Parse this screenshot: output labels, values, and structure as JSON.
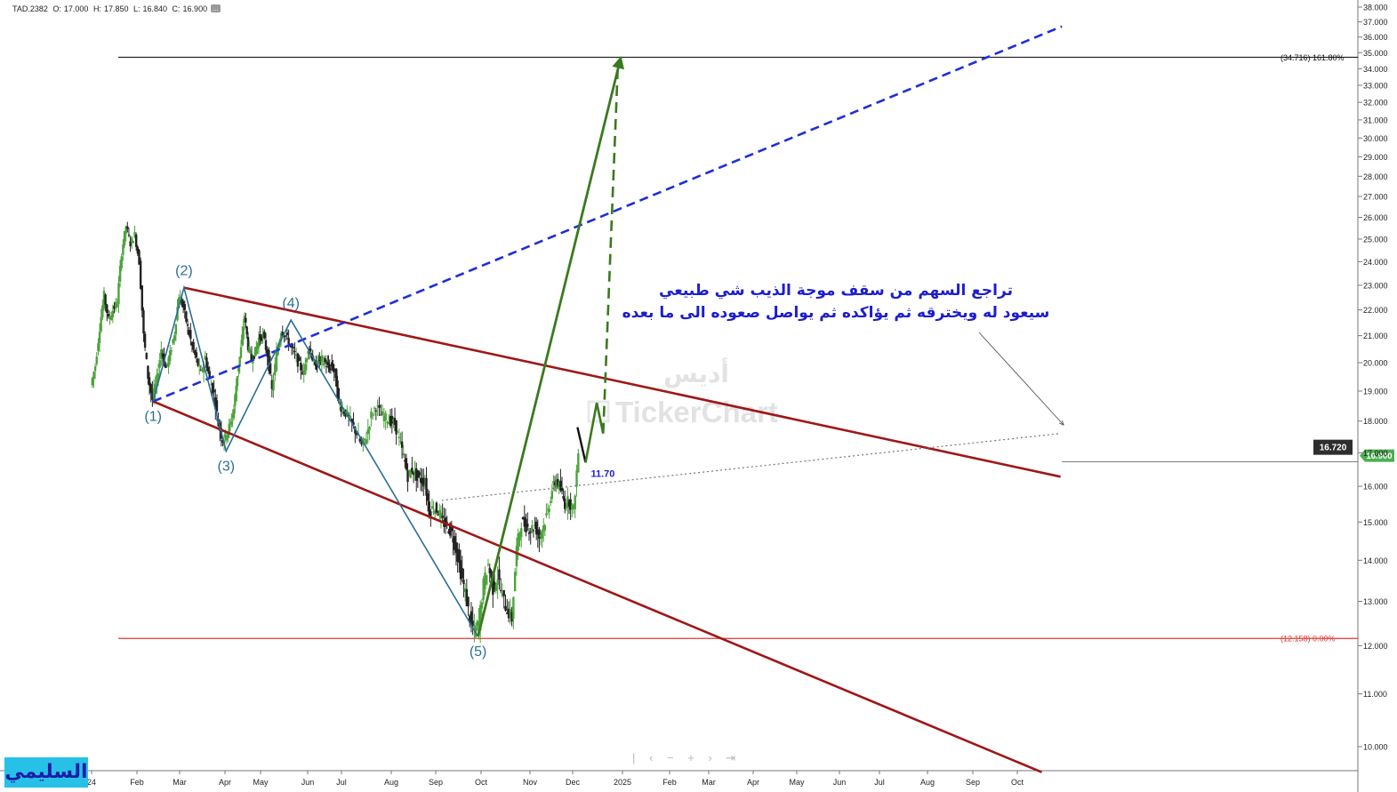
{
  "header": {
    "symbol": "TAD.2382",
    "open_label": "O:",
    "open": "17.000",
    "high_label": "H:",
    "high": "17.850",
    "low_label": "L:",
    "low": "16.840",
    "close_label": "C:",
    "close": "16.900",
    "more": "..."
  },
  "watermark": {
    "ar": "أديس",
    "en": "TickerChart"
  },
  "signature": "السليمي",
  "nav_icons": [
    "pipe-icon",
    "chevron-left-icon",
    "minus-icon",
    "plus-icon",
    "chevron-right-icon",
    "skip-end-icon"
  ],
  "nav_glyphs": [
    "|",
    "‹",
    "−",
    "+",
    "›",
    "⇥"
  ],
  "colors": {
    "up_candle": "#4ba33a",
    "down_candle": "#222222",
    "channel": "#a01616",
    "wave": "#2c6e96",
    "projection": "#1e2fd6",
    "target_arrow": "#3a7a1f",
    "fib_zero": "#e53935",
    "price_badge": "#4caf50",
    "annotation": "#1d1dcf"
  },
  "chart_data": {
    "type": "candlestick",
    "ylim": [
      9.6,
      38.0
    ],
    "log_scale": true,
    "grid": false,
    "y_ticks": [
      "38.000",
      "37.000",
      "36.000",
      "35.000",
      "34.000",
      "33.000",
      "32.000",
      "31.000",
      "30.000",
      "29.000",
      "28.000",
      "27.000",
      "26.000",
      "25.000",
      "24.000",
      "23.000",
      "22.000",
      "21.000",
      "20.000",
      "19.000",
      "18.000",
      "17.000",
      "16.000",
      "15.000",
      "14.000",
      "13.000",
      "12.000",
      "11.000",
      "10.000"
    ],
    "x_ticks": [
      "24",
      "Feb",
      "Mar",
      "Apr",
      "May",
      "Jun",
      "Jul",
      "Aug",
      "Sep",
      "Oct",
      "Nov",
      "Dec",
      "2025",
      "Feb",
      "Mar",
      "Apr",
      "May",
      "Jun",
      "Jul",
      "Aug",
      "Sep",
      "Oct"
    ],
    "price_path": [
      {
        "date": "2024-01-01",
        "price": 19.2
      },
      {
        "date": "2024-01-04",
        "price": 19.9
      },
      {
        "date": "2024-01-07",
        "price": 21.3
      },
      {
        "date": "2024-01-10",
        "price": 22.6
      },
      {
        "date": "2024-01-13",
        "price": 21.6
      },
      {
        "date": "2024-01-16",
        "price": 22.0
      },
      {
        "date": "2024-01-19",
        "price": 22.3
      },
      {
        "date": "2024-01-22",
        "price": 24.4
      },
      {
        "date": "2024-01-25",
        "price": 25.6
      },
      {
        "date": "2024-01-28",
        "price": 24.8
      },
      {
        "date": "2024-01-31",
        "price": 25.2
      },
      {
        "date": "2024-02-03",
        "price": 24.0
      },
      {
        "date": "2024-02-06",
        "price": 21.0
      },
      {
        "date": "2024-02-09",
        "price": 19.5
      },
      {
        "date": "2024-02-12",
        "price": 18.7
      },
      {
        "date": "2024-02-15",
        "price": 19.4
      },
      {
        "date": "2024-02-18",
        "price": 20.5
      },
      {
        "date": "2024-02-21",
        "price": 19.8
      },
      {
        "date": "2024-02-24",
        "price": 20.3
      },
      {
        "date": "2024-02-27",
        "price": 21.1
      },
      {
        "date": "2024-03-01",
        "price": 22.6
      },
      {
        "date": "2024-03-04",
        "price": 22.1
      },
      {
        "date": "2024-03-07",
        "price": 21.3
      },
      {
        "date": "2024-03-10",
        "price": 20.6
      },
      {
        "date": "2024-03-13",
        "price": 20.1
      },
      {
        "date": "2024-03-16",
        "price": 19.6
      },
      {
        "date": "2024-03-19",
        "price": 20.2
      },
      {
        "date": "2024-03-22",
        "price": 19.4
      },
      {
        "date": "2024-03-25",
        "price": 18.9
      },
      {
        "date": "2024-03-28",
        "price": 17.9
      },
      {
        "date": "2024-03-31",
        "price": 17.4
      },
      {
        "date": "2024-04-03",
        "price": 17.6
      },
      {
        "date": "2024-04-06",
        "price": 17.9
      },
      {
        "date": "2024-04-09",
        "price": 18.4
      },
      {
        "date": "2024-04-12",
        "price": 19.6
      },
      {
        "date": "2024-04-15",
        "price": 20.5
      },
      {
        "date": "2024-04-18",
        "price": 21.8
      },
      {
        "date": "2024-04-21",
        "price": 20.6
      },
      {
        "date": "2024-04-24",
        "price": 20.1
      },
      {
        "date": "2024-04-27",
        "price": 20.4
      },
      {
        "date": "2024-04-30",
        "price": 20.9
      },
      {
        "date": "2024-05-03",
        "price": 21.0
      },
      {
        "date": "2024-05-06",
        "price": 20.3
      },
      {
        "date": "2024-05-09",
        "price": 19.0
      },
      {
        "date": "2024-05-12",
        "price": 20.3
      },
      {
        "date": "2024-05-15",
        "price": 21.2
      },
      {
        "date": "2024-05-18",
        "price": 21.0
      },
      {
        "date": "2024-05-21",
        "price": 20.6
      },
      {
        "date": "2024-05-24",
        "price": 20.3
      },
      {
        "date": "2024-05-27",
        "price": 19.9
      },
      {
        "date": "2024-05-30",
        "price": 19.6
      },
      {
        "date": "2024-06-02",
        "price": 20.6
      },
      {
        "date": "2024-06-05",
        "price": 20.3
      },
      {
        "date": "2024-06-08",
        "price": 19.8
      },
      {
        "date": "2024-06-11",
        "price": 20.1
      },
      {
        "date": "2024-06-14",
        "price": 20.1
      },
      {
        "date": "2024-06-17",
        "price": 20.0
      },
      {
        "date": "2024-06-20",
        "price": 19.8
      },
      {
        "date": "2024-06-23",
        "price": 19.9
      },
      {
        "date": "2024-06-26",
        "price": 19.6
      },
      {
        "date": "2024-06-29",
        "price": 18.6
      },
      {
        "date": "2024-07-02",
        "price": 18.4
      },
      {
        "date": "2024-07-05",
        "price": 18.2
      },
      {
        "date": "2024-07-08",
        "price": 17.9
      },
      {
        "date": "2024-07-11",
        "price": 17.6
      },
      {
        "date": "2024-07-14",
        "price": 17.2
      },
      {
        "date": "2024-07-17",
        "price": 17.5
      },
      {
        "date": "2024-07-20",
        "price": 18.2
      },
      {
        "date": "2024-07-23",
        "price": 18.5
      },
      {
        "date": "2024-07-26",
        "price": 18.2
      },
      {
        "date": "2024-07-29",
        "price": 18.1
      },
      {
        "date": "2024-08-01",
        "price": 18.0
      },
      {
        "date": "2024-08-04",
        "price": 17.9
      },
      {
        "date": "2024-08-07",
        "price": 17.4
      },
      {
        "date": "2024-08-10",
        "price": 16.9
      },
      {
        "date": "2024-08-13",
        "price": 16.3
      },
      {
        "date": "2024-08-16",
        "price": 16.5
      },
      {
        "date": "2024-08-19",
        "price": 16.3
      },
      {
        "date": "2024-08-22",
        "price": 16.2
      },
      {
        "date": "2024-08-25",
        "price": 16.1
      },
      {
        "date": "2024-08-28",
        "price": 15.3
      },
      {
        "date": "2024-08-31",
        "price": 15.4
      },
      {
        "date": "2024-09-03",
        "price": 15.3
      },
      {
        "date": "2024-09-06",
        "price": 15.0
      },
      {
        "date": "2024-09-09",
        "price": 14.9
      },
      {
        "date": "2024-09-12",
        "price": 14.7
      },
      {
        "date": "2024-09-15",
        "price": 14.3
      },
      {
        "date": "2024-09-18",
        "price": 13.7
      },
      {
        "date": "2024-09-21",
        "price": 13.2
      },
      {
        "date": "2024-09-24",
        "price": 12.6
      },
      {
        "date": "2024-09-27",
        "price": 12.3
      },
      {
        "date": "2024-09-30",
        "price": 12.5
      },
      {
        "date": "2024-10-03",
        "price": 13.4
      },
      {
        "date": "2024-10-06",
        "price": 13.9
      },
      {
        "date": "2024-10-09",
        "price": 13.3
      },
      {
        "date": "2024-10-12",
        "price": 13.6
      },
      {
        "date": "2024-10-15",
        "price": 13.1
      },
      {
        "date": "2024-10-18",
        "price": 12.8
      },
      {
        "date": "2024-10-21",
        "price": 12.6
      },
      {
        "date": "2024-10-24",
        "price": 14.3
      },
      {
        "date": "2024-10-27",
        "price": 15.0
      },
      {
        "date": "2024-10-30",
        "price": 14.9
      },
      {
        "date": "2024-11-02",
        "price": 14.8
      },
      {
        "date": "2024-11-05",
        "price": 14.9
      },
      {
        "date": "2024-11-08",
        "price": 14.6
      },
      {
        "date": "2024-11-11",
        "price": 14.9
      },
      {
        "date": "2024-11-14",
        "price": 15.3
      },
      {
        "date": "2024-11-17",
        "price": 15.9
      },
      {
        "date": "2024-11-20",
        "price": 16.2
      },
      {
        "date": "2024-11-23",
        "price": 15.9
      },
      {
        "date": "2024-11-26",
        "price": 15.5
      },
      {
        "date": "2024-11-29",
        "price": 15.6
      },
      {
        "date": "2024-12-02",
        "price": 15.3
      },
      {
        "date": "2024-12-05",
        "price": 17.0
      }
    ],
    "series": [
      {
        "name": "",
        "points": [
          {
            "date": "2024-02-12",
            "price": 18.65
          },
          {
            "date": "2024-03-04",
            "price": 22.9
          },
          {
            "date": "2024-04-02",
            "price": 17.05
          },
          {
            "date": "2024-05-21",
            "price": 21.6
          },
          {
            "date": "2024-09-29",
            "price": 12.2
          }
        ]
      }
    ],
    "channel_upper": [
      {
        "date": "2024-03-04",
        "price": 22.9
      },
      {
        "date": "2025-10-31",
        "price": 16.28
      }
    ],
    "channel_lower": [
      {
        "date": "2024-02-12",
        "price": 18.65
      },
      {
        "date": "2025-10-18",
        "price": 9.55
      }
    ],
    "projection_line": [
      {
        "date": "2024-02-12",
        "price": 18.65
      },
      {
        "date": "2025-11-01",
        "price": 36.7
      }
    ],
    "dotted_trend": [
      {
        "date": "2024-09-05",
        "price": 15.6
      },
      {
        "date": "2025-10-31",
        "price": 17.6
      }
    ],
    "target_arrow": [
      {
        "date": "2024-09-29",
        "price": 12.2
      },
      {
        "date": "2024-12-31",
        "price": 34.716
      }
    ],
    "scenario_path": [
      {
        "date": "2024-12-04",
        "price": 17.8
      },
      {
        "date": "2024-12-09",
        "price": 16.7
      },
      {
        "date": "2024-12-16",
        "price": 18.6
      },
      {
        "date": "2024-12-20",
        "price": 17.6
      },
      {
        "date": "2024-12-29",
        "price": 33.9
      }
    ],
    "levels": [
      {
        "price": 34.716,
        "text": "(34.716) 161.80%"
      },
      {
        "price": 12.158,
        "text": "(12.158) 0.00%"
      },
      {
        "price": 16.72,
        "text": ""
      }
    ],
    "wave_labels": [
      "(1)",
      "(2)",
      "(3)",
      "(4)",
      "(5)"
    ],
    "point_label": "11.70",
    "badges": {
      "target": "16.720",
      "last": "16.900"
    },
    "annotation": [
      "تراجع السهم من سقف موجة الذيب شي طبيعي",
      "سيعود له ويخترقه ثم يؤاكده ثم يواصل صعوده الى ما بعده"
    ]
  }
}
